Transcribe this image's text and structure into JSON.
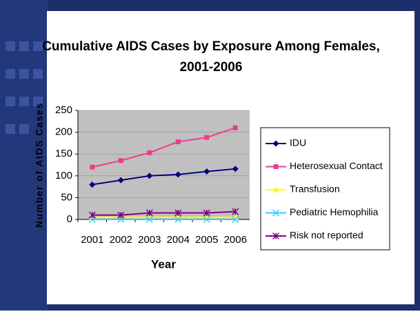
{
  "chart_data": {
    "type": "line",
    "title": [
      "Cumulative AIDS Cases by Exposure Among Females,",
      "2001-2006"
    ],
    "x_label": "Year",
    "y_label": "Number of AIDS Cases",
    "categories": [
      "2001",
      "2002",
      "2003",
      "2004",
      "2005",
      "2006"
    ],
    "series": [
      {
        "name": "IDU",
        "color": "#000080",
        "marker": "diamond",
        "values": [
          80,
          90,
          100,
          103,
          110,
          116
        ]
      },
      {
        "name": "Heterosexual Contact",
        "color": "#ee3a8c",
        "marker": "square",
        "values": [
          120,
          135,
          153,
          178,
          188,
          210
        ]
      },
      {
        "name": "Transfusion",
        "color": "#ffff00",
        "marker": "triangle",
        "values": [
          5,
          5,
          5,
          5,
          5,
          5
        ]
      },
      {
        "name": "Pediatric Hemophilia",
        "color": "#33ccff",
        "marker": "x",
        "values": [
          0,
          0,
          0,
          0,
          0,
          0
        ]
      },
      {
        "name": "Risk not reported",
        "color": "#800080",
        "marker": "star",
        "values": [
          10,
          10,
          15,
          15,
          15,
          18
        ]
      }
    ],
    "ylim": [
      0,
      250
    ],
    "yticks": [
      0,
      50,
      100,
      150,
      200,
      250
    ],
    "grid": true,
    "legend": "right"
  }
}
